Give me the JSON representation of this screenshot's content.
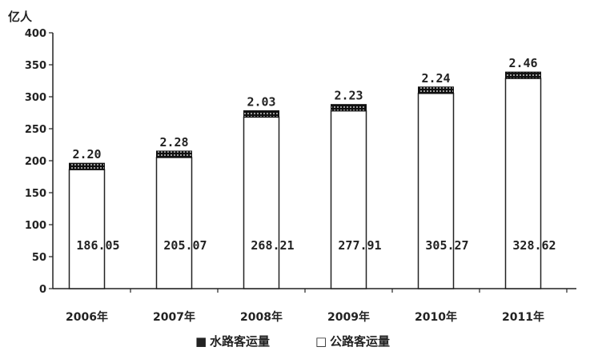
{
  "chart_data": {
    "type": "bar",
    "stacked": true,
    "ylabel": "亿人",
    "ylim": [
      0,
      400
    ],
    "yticks": [
      0,
      50,
      100,
      150,
      200,
      250,
      300,
      350,
      400
    ],
    "categories": [
      "2006年",
      "2007年",
      "2008年",
      "2009年",
      "2010年",
      "2011年"
    ],
    "series": [
      {
        "name": "公路客运量",
        "values": [
          186.05,
          205.07,
          268.21,
          277.91,
          305.27,
          328.62
        ],
        "labels": [
          "186.05",
          "205.07",
          "268.21",
          "277.91",
          "305.27",
          "328.62"
        ],
        "color": "#ffffff"
      },
      {
        "name": "水路客运量",
        "values": [
          2.2,
          2.28,
          2.03,
          2.23,
          2.24,
          2.46
        ],
        "labels": [
          "2.20",
          "2.28",
          "2.03",
          "2.23",
          "2.24",
          "2.46"
        ],
        "color": "#111111"
      }
    ],
    "legend": {
      "placement": "bottom-center",
      "items": [
        {
          "symbol": "■",
          "label": "水路客运量"
        },
        {
          "symbol": "□",
          "label": "公路客运量"
        }
      ]
    },
    "grid": false
  }
}
